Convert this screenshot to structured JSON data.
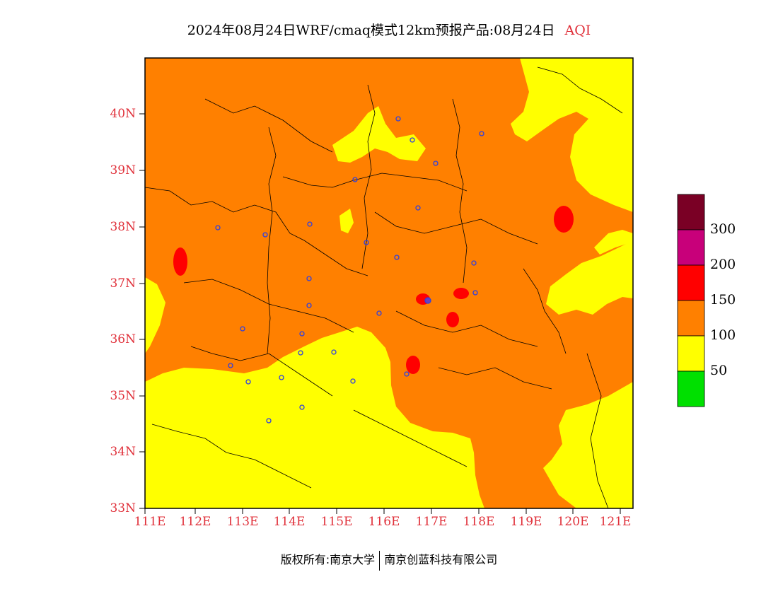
{
  "header": {
    "title": "2024年08月24日WRF/cmaq模式12km预报产品:08月24日",
    "variable": "AQI"
  },
  "map": {
    "lat_labels": [
      "40N",
      "39N",
      "38N",
      "37N",
      "36N",
      "35N",
      "34N",
      "33N"
    ],
    "lon_labels": [
      "111E",
      "112E",
      "113E",
      "114E",
      "115E",
      "116E",
      "117E",
      "118E",
      "119E",
      "120E",
      "121E"
    ]
  },
  "legend": {
    "labels": [
      "300",
      "200",
      "150",
      "100",
      "50"
    ],
    "colors": {
      "over300": "#7a0025",
      "aqi200_300": "#c8007a",
      "aqi150_200": "#ff0000",
      "aqi100_150": "#ff8000",
      "aqi50_100": "#ffff00",
      "aqi0_50": "#00e000"
    }
  },
  "footer": {
    "left": "版权所有:南京大学",
    "right": "南京创蓝科技有限公司"
  }
}
